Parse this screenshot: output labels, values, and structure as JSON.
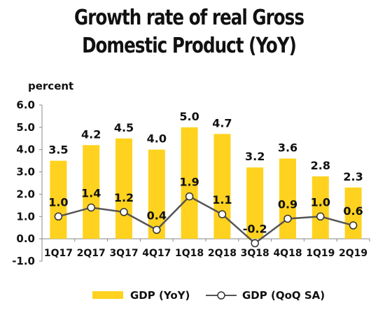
{
  "chart_data": {
    "type": "bar",
    "title_line1": "Growth rate of real Gross",
    "title_line2": "Domestic Product (YoY)",
    "ylabel": "percent",
    "categories": [
      "1Q17",
      "2Q17",
      "3Q17",
      "4Q17",
      "1Q18",
      "2Q18",
      "3Q18",
      "4Q18",
      "1Q19",
      "2Q19"
    ],
    "series": [
      {
        "name": "GDP (YoY)",
        "kind": "bar",
        "color": "#FFD21F",
        "values": [
          3.5,
          4.2,
          4.5,
          4.0,
          5.0,
          4.7,
          3.2,
          3.6,
          2.8,
          2.3
        ],
        "labels": [
          "3.5",
          "4.2",
          "4.5",
          "4.0",
          "5.0",
          "4.7",
          "3.2",
          "3.6",
          "2.8",
          "2.3"
        ]
      },
      {
        "name": "GDP (QoQ SA)",
        "kind": "line",
        "color": "#555555",
        "values": [
          1.0,
          1.4,
          1.2,
          0.4,
          1.9,
          1.1,
          -0.2,
          0.9,
          1.0,
          0.6
        ],
        "labels": [
          "1.0",
          "1.4",
          "1.2",
          "0.4",
          "1.9",
          "1.1",
          "-0.2",
          "0.9",
          "1.0",
          "0.6"
        ]
      }
    ],
    "yticks": [
      "6.0",
      "5.0",
      "4.0",
      "3.0",
      "2.0",
      "1.0",
      "0.0",
      "-1.0"
    ],
    "ylim": [
      -1,
      6
    ],
    "grid": false,
    "legend_position": "bottom"
  }
}
